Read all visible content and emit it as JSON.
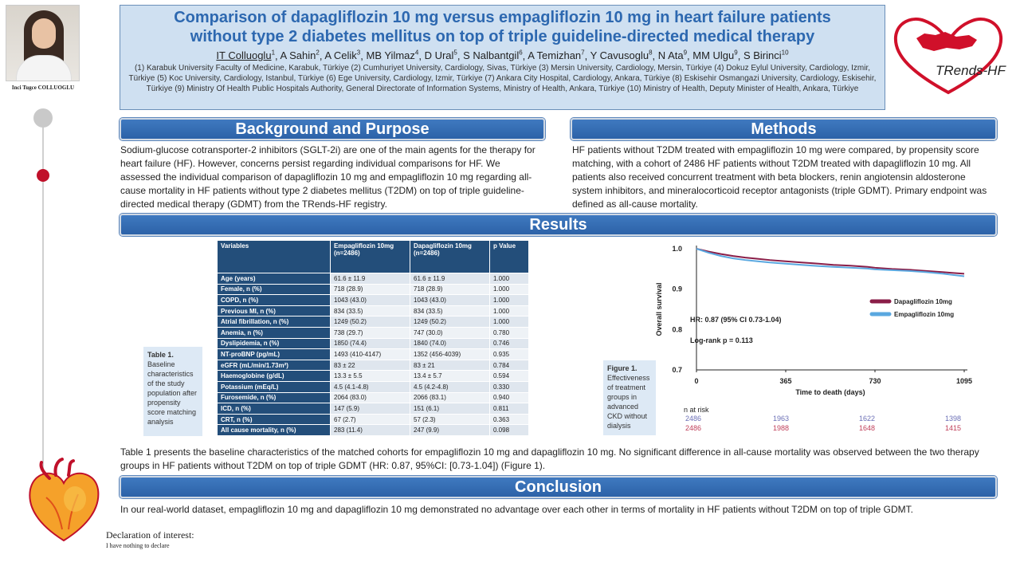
{
  "author_panel": {
    "name": "Inci Tugce COLLUOGLU"
  },
  "header": {
    "title_line1": "Comparison of dapagliflozin 10 mg versus empagliflozin 10 mg in heart failure patients",
    "title_line2": "without type 2 diabetes mellitus on top of triple guideline-directed medical therapy",
    "authors": [
      {
        "name": "IT Colluoglu",
        "sup": "1"
      },
      {
        "name": "A Sahin",
        "sup": "2"
      },
      {
        "name": "A Celik",
        "sup": "3"
      },
      {
        "name": "MB Yilmaz",
        "sup": "4"
      },
      {
        "name": "D Ural",
        "sup": "5"
      },
      {
        "name": "S Nalbantgil",
        "sup": "6"
      },
      {
        "name": "A Temizhan",
        "sup": "7"
      },
      {
        "name": "Y Cavusoglu",
        "sup": "8"
      },
      {
        "name": "N Ata",
        "sup": "9"
      },
      {
        "name": "MM Ulgu",
        "sup": "9"
      },
      {
        "name": "S Birinci",
        "sup": "10"
      }
    ],
    "affiliations": "(1) Karabuk University Faculty of Medicine, Karabuk, Türkiye (2) Cumhuriyet University, Cardiology, Sivas, Türkiye (3) Mersin University, Cardiology, Mersin, Türkiye (4) Dokuz Eylul University, Cardiology, Izmir, Türkiye (5) Koc University, Cardiology, Istanbul, Türkiye (6) Ege University, Cardiology, Izmir, Türkiye (7) Ankara City Hospital, Cardiology, Ankara, Türkiye (8) Eskisehir Osmangazi University, Cardiology, Eskisehir, Türkiye (9) Ministry Of Health Public Hospitals Authority, General Directorate of Information Systems, Ministry of Health, Ankara, Türkiye (10) Ministry of Health, Deputy Minister of Health, Ankara, Türkiye"
  },
  "logo": {
    "text": "TRends-HF"
  },
  "sections": {
    "background": {
      "title": "Background and Purpose",
      "text": "Sodium-glucose cotransporter-2 inhibitors (SGLT-2i) are one of the main agents for the therapy for heart failure (HF). However, concerns persist regarding individual comparisons for HF. We assessed the individual comparison of dapagliflozin 10 mg and empagliflozin 10 mg regarding all-cause mortality in HF patients without type 2 diabetes mellitus (T2DM) on top of triple guideline-directed medical therapy (GDMT) from the TRends-HF registry."
    },
    "methods": {
      "title": "Methods",
      "text": "HF patients without T2DM treated with empagliflozin 10 mg were compared, by propensity score matching, with a cohort of 2486 HF patients without T2DM treated with dapagliflozin 10 mg. All patients also received concurrent treatment with beta blockers, renin angiotensin aldosterone system inhibitors, and mineralocorticoid receptor antagonists (triple GDMT). Primary endpoint was defined as all-cause mortality."
    },
    "results": {
      "title": "Results",
      "text": "Table 1 presents the baseline characteristics of the matched cohorts for empagliflozin 10 mg and dapagliflozin 10 mg. No significant difference in all-cause mortality was observed between the two therapy groups in HF patients without T2DM on top of triple GDMT (HR: 0.87, 95%CI: [0.73-1.04]) (Figure 1)."
    },
    "conclusion": {
      "title": "Conclusion",
      "text": "In our real-world dataset, empagliflozin 10 mg and dapagliflozin 10 mg demonstrated no advantage over each other in terms of mortality in HF patients without T2DM on top of triple GDMT."
    }
  },
  "table1": {
    "headers": {
      "variables": "Variables",
      "empa": "Empagliflozin 10mg",
      "empa_n": "(n=2486)",
      "dapa": "Dapagliflozin 10mg",
      "dapa_n": "(n=2486)",
      "p": "p Value"
    },
    "rows": [
      {
        "variable": "Age (years)",
        "empa": "61.6 ± 11.9",
        "dapa": "61.6 ± 11.9",
        "p": "1.000"
      },
      {
        "variable": "Female, n (%)",
        "empa": "718 (28.9)",
        "dapa": "718 (28.9)",
        "p": "1.000"
      },
      {
        "variable": "COPD, n (%)",
        "empa": "1043 (43.0)",
        "dapa": "1043 (43.0)",
        "p": "1.000"
      },
      {
        "variable": "Previous MI, n (%)",
        "empa": "834 (33.5)",
        "dapa": "834 (33.5)",
        "p": "1.000"
      },
      {
        "variable": "Atrial fibrillation, n (%)",
        "empa": "1249 (50.2)",
        "dapa": "1249 (50.2)",
        "p": "1.000"
      },
      {
        "variable": "Anemia, n (%)",
        "empa": "738 (29.7)",
        "dapa": "747 (30.0)",
        "p": "0.780"
      },
      {
        "variable": "Dyslipidemia, n (%)",
        "empa": "1850 (74.4)",
        "dapa": "1840 (74.0)",
        "p": "0.746"
      },
      {
        "variable": "NT-proBNP (pg/mL)",
        "empa": "1493 (410-4147)",
        "dapa": "1352 (456-4039)",
        "p": "0.935"
      },
      {
        "variable": "eGFR (mL/min/1.73m²)",
        "empa": "83 ± 22",
        "dapa": "83 ± 21",
        "p": "0.784"
      },
      {
        "variable": "Haemoglobine (g/dL)",
        "empa": "13.3 ± 5.5",
        "dapa": "13.4 ± 5.7",
        "p": "0.594"
      },
      {
        "variable": "Potassium (mEq/L)",
        "empa": "4.5 (4.1-4.8)",
        "dapa": "4.5 (4.2-4.8)",
        "p": "0.330"
      },
      {
        "variable": "Furosemide, n (%)",
        "empa": "2064 (83.0)",
        "dapa": "2066 (83.1)",
        "p": "0.940"
      },
      {
        "variable": "ICD, n (%)",
        "empa": "147 (5.9)",
        "dapa": "151 (6.1)",
        "p": "0.811"
      },
      {
        "variable": "CRT, n (%)",
        "empa": "67 (2.7)",
        "dapa": "57 (2.3)",
        "p": "0.363"
      },
      {
        "variable": "All cause mortality, n (%)",
        "empa": "283 (11.4)",
        "dapa": "247 (9.9)",
        "p": "0.098"
      }
    ]
  },
  "table1_caption": {
    "label": "Table 1.",
    "text": "Baseline characteristics of the study population after propensity score matching analysis"
  },
  "figure1_caption": {
    "label": "Figure 1.",
    "text": "Effectiveness of treatment groups in advanced CKD without dialysis"
  },
  "declaration": {
    "title": "Declaration of interest:",
    "text": "I have nothing to declare"
  },
  "chart_data": {
    "type": "line",
    "title": "",
    "xlabel": "Time to death (days)",
    "ylabel": "Overall survival",
    "xlim": [
      0,
      1095
    ],
    "ylim": [
      0.7,
      1.0
    ],
    "x_ticks": [
      "0",
      "365",
      "730",
      "1095"
    ],
    "y_ticks": [
      "0.7",
      "0.8",
      "0.9",
      "1.0"
    ],
    "legend_position": "right",
    "annotations": [
      "HR: 0.87 (95% CI 0.73-1.04)",
      "Log-rank p = 0.113"
    ],
    "series": [
      {
        "name": "Dapagliflozin 10mg",
        "color": "#8a1e48",
        "x": [
          0,
          50,
          100,
          150,
          200,
          250,
          300,
          365,
          430,
          500,
          560,
          630,
          700,
          730,
          800,
          870,
          940,
          1010,
          1050,
          1095
        ],
        "y": [
          1.0,
          0.993,
          0.987,
          0.982,
          0.978,
          0.975,
          0.972,
          0.969,
          0.966,
          0.963,
          0.96,
          0.958,
          0.955,
          0.953,
          0.95,
          0.948,
          0.945,
          0.942,
          0.94,
          0.938
        ]
      },
      {
        "name": "Empagliflozin 10mg",
        "color": "#5aa8e0",
        "x": [
          0,
          50,
          100,
          150,
          200,
          250,
          300,
          365,
          430,
          500,
          560,
          630,
          700,
          730,
          800,
          870,
          940,
          1010,
          1050,
          1095
        ],
        "y": [
          1.0,
          0.99,
          0.982,
          0.976,
          0.972,
          0.969,
          0.966,
          0.963,
          0.96,
          0.957,
          0.955,
          0.953,
          0.951,
          0.949,
          0.947,
          0.945,
          0.942,
          0.938,
          0.935,
          0.932
        ]
      }
    ],
    "at_risk": {
      "label": "n at risk",
      "times": [
        0,
        365,
        730,
        1095
      ],
      "dapagliflozin": [
        "2486",
        "1963",
        "1622",
        "1398"
      ],
      "empagliflozin": [
        "2486",
        "1988",
        "1648",
        "1415"
      ]
    }
  }
}
